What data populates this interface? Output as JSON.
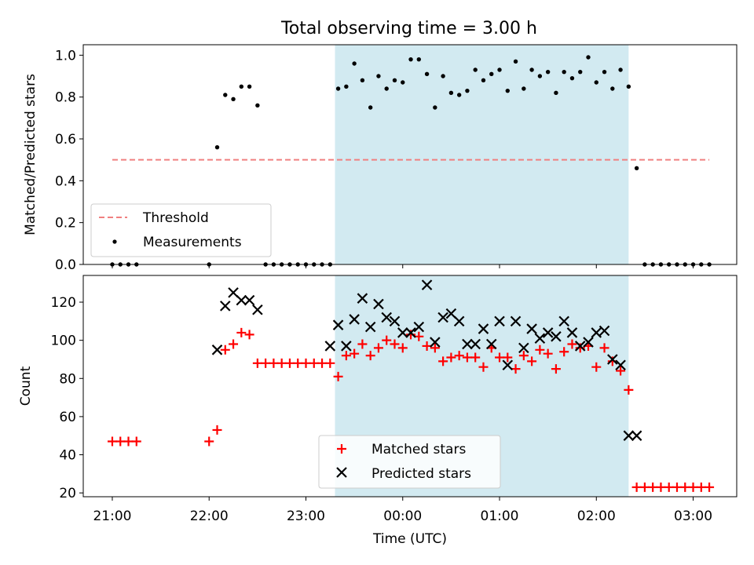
{
  "title": "Total observing time = 3.00 h",
  "colors": {
    "threshold": "#f08080",
    "measurements": "#000000",
    "matched": "#ff0000",
    "predicted": "#000000",
    "shade": "#add8e6"
  },
  "chart_data": [
    {
      "type": "scatter",
      "panel": "top",
      "ylabel": "Matched/Predicted stars",
      "ylim": [
        0,
        1.05
      ],
      "yticks": [
        0.0,
        0.2,
        0.4,
        0.6,
        0.8,
        1.0
      ],
      "ytick_labels": [
        "0.0",
        "0.2",
        "0.4",
        "0.6",
        "0.8",
        "1.0"
      ],
      "xlim_hours": [
        -3.3,
        3.45
      ],
      "shaded_span": [
        "23:18",
        "02:20"
      ],
      "legend_placement": "lower-left",
      "threshold": {
        "name": "Threshold",
        "value": 0.5,
        "x_from": "21:00",
        "x_to": "03:10"
      },
      "series": [
        {
          "name": "Measurements",
          "x": [
            "21:00",
            "21:05",
            "21:10",
            "21:15",
            "22:00",
            "22:05",
            "22:10",
            "22:15",
            "22:20",
            "22:25",
            "22:30",
            "22:35",
            "22:40",
            "22:45",
            "22:50",
            "22:55",
            "23:00",
            "23:05",
            "23:10",
            "23:15",
            "23:20",
            "23:25",
            "23:30",
            "23:35",
            "23:40",
            "23:45",
            "23:50",
            "23:55",
            "00:00",
            "00:05",
            "00:10",
            "00:15",
            "00:20",
            "00:25",
            "00:30",
            "00:35",
            "00:40",
            "00:45",
            "00:50",
            "00:55",
            "01:00",
            "01:05",
            "01:10",
            "01:15",
            "01:20",
            "01:25",
            "01:30",
            "01:35",
            "01:40",
            "01:45",
            "01:50",
            "01:55",
            "02:00",
            "02:05",
            "02:10",
            "02:15",
            "02:20",
            "02:25",
            "02:30",
            "02:35",
            "02:40",
            "02:45",
            "02:50",
            "02:55",
            "03:00",
            "03:05",
            "03:10"
          ],
          "y": [
            0,
            0,
            0,
            0,
            0,
            0.56,
            0.81,
            0.79,
            0.85,
            0.85,
            0.76,
            0,
            0,
            0,
            0,
            0,
            0,
            0,
            0,
            0,
            0.84,
            0.85,
            0.96,
            0.88,
            0.75,
            0.9,
            0.84,
            0.88,
            0.87,
            0.98,
            0.98,
            0.91,
            0.75,
            0.9,
            0.82,
            0.81,
            0.83,
            0.93,
            0.88,
            0.91,
            0.93,
            0.83,
            0.97,
            0.84,
            0.93,
            0.9,
            0.92,
            0.82,
            0.92,
            0.89,
            0.92,
            0.99,
            0.87,
            0.92,
            0.84,
            0.93,
            0.85,
            0.46,
            0,
            0,
            0,
            0,
            0,
            0,
            0,
            0,
            0
          ]
        }
      ]
    },
    {
      "type": "scatter",
      "panel": "bottom",
      "ylabel": "Count",
      "xlabel": "Time (UTC)",
      "ylim": [
        18,
        134
      ],
      "yticks": [
        20,
        40,
        60,
        80,
        100,
        120
      ],
      "ytick_labels": [
        "20",
        "40",
        "60",
        "80",
        "100",
        "120"
      ],
      "xlim_hours": [
        -3.3,
        3.45
      ],
      "xticks_hours": [
        -3,
        -2,
        -1,
        0,
        1,
        2,
        3
      ],
      "xtick_labels": [
        "21:00",
        "22:00",
        "23:00",
        "00:00",
        "01:00",
        "02:00",
        "03:00"
      ],
      "shaded_span": [
        "23:18",
        "02:20"
      ],
      "legend_placement": "lower-center",
      "series": [
        {
          "name": "Matched stars",
          "marker": "plus",
          "x": [
            "21:00",
            "21:05",
            "21:10",
            "21:15",
            "22:00",
            "22:05",
            "22:10",
            "22:15",
            "22:20",
            "22:25",
            "22:30",
            "22:35",
            "22:40",
            "22:45",
            "22:50",
            "22:55",
            "23:00",
            "23:05",
            "23:10",
            "23:15",
            "23:20",
            "23:25",
            "23:30",
            "23:35",
            "23:40",
            "23:45",
            "23:50",
            "23:55",
            "00:00",
            "00:05",
            "00:10",
            "00:15",
            "00:20",
            "00:25",
            "00:30",
            "00:35",
            "00:40",
            "00:45",
            "00:50",
            "00:55",
            "01:00",
            "01:05",
            "01:10",
            "01:15",
            "01:20",
            "01:25",
            "01:30",
            "01:35",
            "01:40",
            "01:45",
            "01:50",
            "01:55",
            "02:00",
            "02:05",
            "02:10",
            "02:15",
            "02:20",
            "02:25",
            "02:30",
            "02:35",
            "02:40",
            "02:45",
            "02:50",
            "02:55",
            "03:00",
            "03:05",
            "03:10"
          ],
          "y": [
            47,
            47,
            47,
            47,
            47,
            53,
            95,
            98,
            104,
            103,
            88,
            88,
            88,
            88,
            88,
            88,
            88,
            88,
            88,
            88,
            81,
            92,
            93,
            98,
            92,
            96,
            100,
            98,
            96,
            103,
            102,
            97,
            96,
            89,
            91,
            92,
            91,
            91,
            86,
            96,
            91,
            91,
            85,
            92,
            89,
            95,
            93,
            85,
            94,
            98,
            96,
            97,
            86,
            96,
            89,
            84,
            74,
            23,
            23,
            23,
            23,
            23,
            23,
            23,
            23,
            23,
            23
          ]
        },
        {
          "name": "Predicted stars",
          "marker": "x",
          "x": [
            "22:05",
            "22:10",
            "22:15",
            "22:20",
            "22:25",
            "22:30",
            "23:15",
            "23:20",
            "23:25",
            "23:30",
            "23:35",
            "23:40",
            "23:45",
            "23:50",
            "23:55",
            "00:00",
            "00:05",
            "00:10",
            "00:15",
            "00:20",
            "00:25",
            "00:30",
            "00:35",
            "00:40",
            "00:45",
            "00:50",
            "00:55",
            "01:00",
            "01:05",
            "01:10",
            "01:15",
            "01:20",
            "01:25",
            "01:30",
            "01:35",
            "01:40",
            "01:45",
            "01:50",
            "01:55",
            "02:00",
            "02:05",
            "02:10",
            "02:15",
            "02:20",
            "02:25"
          ],
          "y": [
            95,
            118,
            125,
            121,
            121,
            116,
            97,
            108,
            97,
            111,
            122,
            107,
            119,
            112,
            110,
            104,
            104,
            107,
            129,
            99,
            112,
            114,
            110,
            98,
            98,
            106,
            98,
            110,
            87,
            110,
            96,
            106,
            101,
            104,
            102,
            110,
            104,
            97,
            99,
            104,
            105,
            90,
            87,
            50,
            50
          ]
        }
      ]
    }
  ]
}
